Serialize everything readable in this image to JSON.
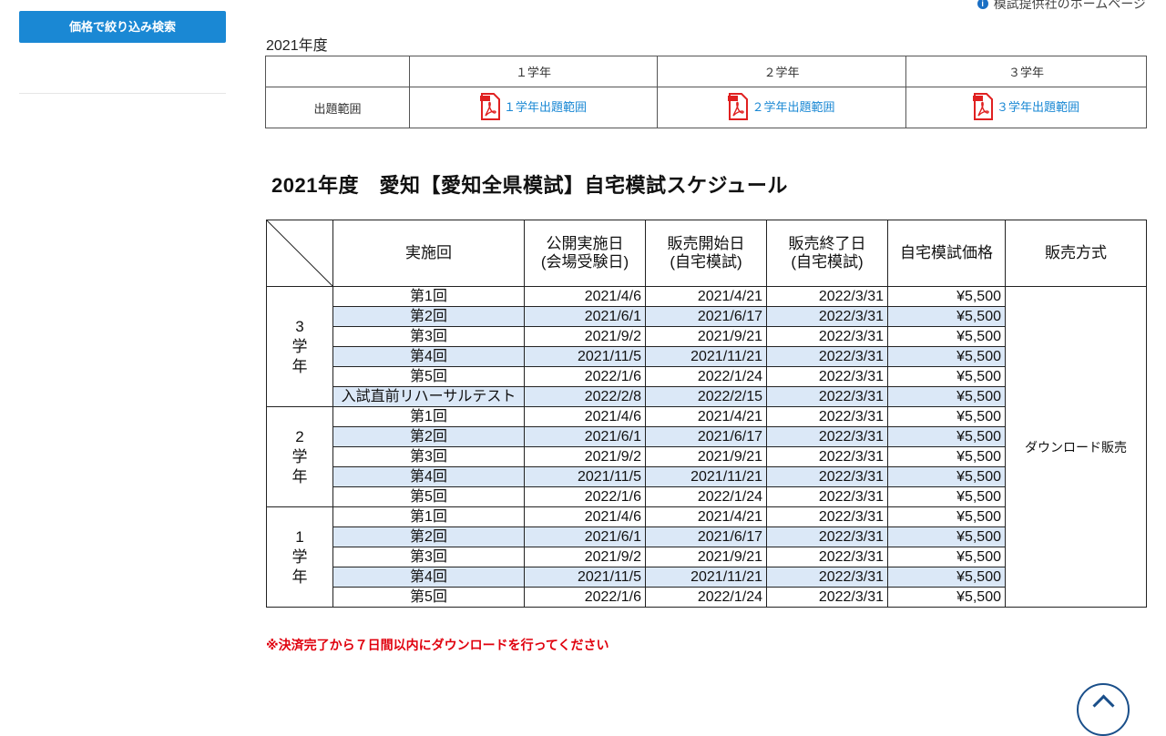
{
  "sidebar": {
    "filter_button": "価格で絞り込み検索"
  },
  "header": {
    "provider_link": "模試提供社のホームページ"
  },
  "range_section": {
    "year": "2021年度",
    "grades": [
      "１学年",
      "２学年",
      "３学年"
    ],
    "row_label": "出題範囲",
    "links": [
      "１学年出題範囲",
      "２学年出題範囲",
      "３学年出題範囲"
    ]
  },
  "schedule": {
    "title": "2021年度　愛知【愛知全県模試】自宅模試スケジュール",
    "headers": {
      "round": "実施回",
      "public_line1": "公開実施日",
      "public_line2": "(会場受験日)",
      "sale_start_line1": "販売開始日",
      "sale_start_line2": "(自宅模試)",
      "sale_end_line1": "販売終了日",
      "sale_end_line2": "(自宅模試)",
      "price": "自宅模試価格",
      "method": "販売方式"
    },
    "method_value": "ダウンロード販売",
    "groups": [
      {
        "grade_num": "3",
        "grade_c1": "学",
        "grade_c2": "年",
        "rows": [
          {
            "round": "第1回",
            "public": "2021/4/6",
            "start": "2021/4/21",
            "end": "2022/3/31",
            "price": "¥5,500"
          },
          {
            "round": "第2回",
            "public": "2021/6/1",
            "start": "2021/6/17",
            "end": "2022/3/31",
            "price": "¥5,500"
          },
          {
            "round": "第3回",
            "public": "2021/9/2",
            "start": "2021/9/21",
            "end": "2022/3/31",
            "price": "¥5,500"
          },
          {
            "round": "第4回",
            "public": "2021/11/5",
            "start": "2021/11/21",
            "end": "2022/3/31",
            "price": "¥5,500"
          },
          {
            "round": "第5回",
            "public": "2022/1/6",
            "start": "2022/1/24",
            "end": "2022/3/31",
            "price": "¥5,500"
          },
          {
            "round": "入試直前リハーサルテスト",
            "public": "2022/2/8",
            "start": "2022/2/15",
            "end": "2022/3/31",
            "price": "¥5,500"
          }
        ]
      },
      {
        "grade_num": "2",
        "grade_c1": "学",
        "grade_c2": "年",
        "rows": [
          {
            "round": "第1回",
            "public": "2021/4/6",
            "start": "2021/4/21",
            "end": "2022/3/31",
            "price": "¥5,500"
          },
          {
            "round": "第2回",
            "public": "2021/6/1",
            "start": "2021/6/17",
            "end": "2022/3/31",
            "price": "¥5,500"
          },
          {
            "round": "第3回",
            "public": "2021/9/2",
            "start": "2021/9/21",
            "end": "2022/3/31",
            "price": "¥5,500"
          },
          {
            "round": "第4回",
            "public": "2021/11/5",
            "start": "2021/11/21",
            "end": "2022/3/31",
            "price": "¥5,500"
          },
          {
            "round": "第5回",
            "public": "2022/1/6",
            "start": "2022/1/24",
            "end": "2022/3/31",
            "price": "¥5,500"
          }
        ]
      },
      {
        "grade_num": "1",
        "grade_c1": "学",
        "grade_c2": "年",
        "rows": [
          {
            "round": "第1回",
            "public": "2021/4/6",
            "start": "2021/4/21",
            "end": "2022/3/31",
            "price": "¥5,500"
          },
          {
            "round": "第2回",
            "public": "2021/6/1",
            "start": "2021/6/17",
            "end": "2022/3/31",
            "price": "¥5,500"
          },
          {
            "round": "第3回",
            "public": "2021/9/2",
            "start": "2021/9/21",
            "end": "2022/3/31",
            "price": "¥5,500"
          },
          {
            "round": "第4回",
            "public": "2021/11/5",
            "start": "2021/11/21",
            "end": "2022/3/31",
            "price": "¥5,500"
          },
          {
            "round": "第5回",
            "public": "2022/1/6",
            "start": "2022/1/24",
            "end": "2022/3/31",
            "price": "¥5,500"
          }
        ]
      }
    ]
  },
  "notice": "※決済完了から７日間以内にダウンロードを行ってください",
  "colors": {
    "accent": "#1a88d4",
    "row_alt": "#dbe8f7",
    "notice": "#e0000d",
    "pdf": "#e02020"
  },
  "icons": {
    "pdf": "pdf-file-icon",
    "info": "info-icon",
    "scroll_top": "chevron-up-icon"
  }
}
